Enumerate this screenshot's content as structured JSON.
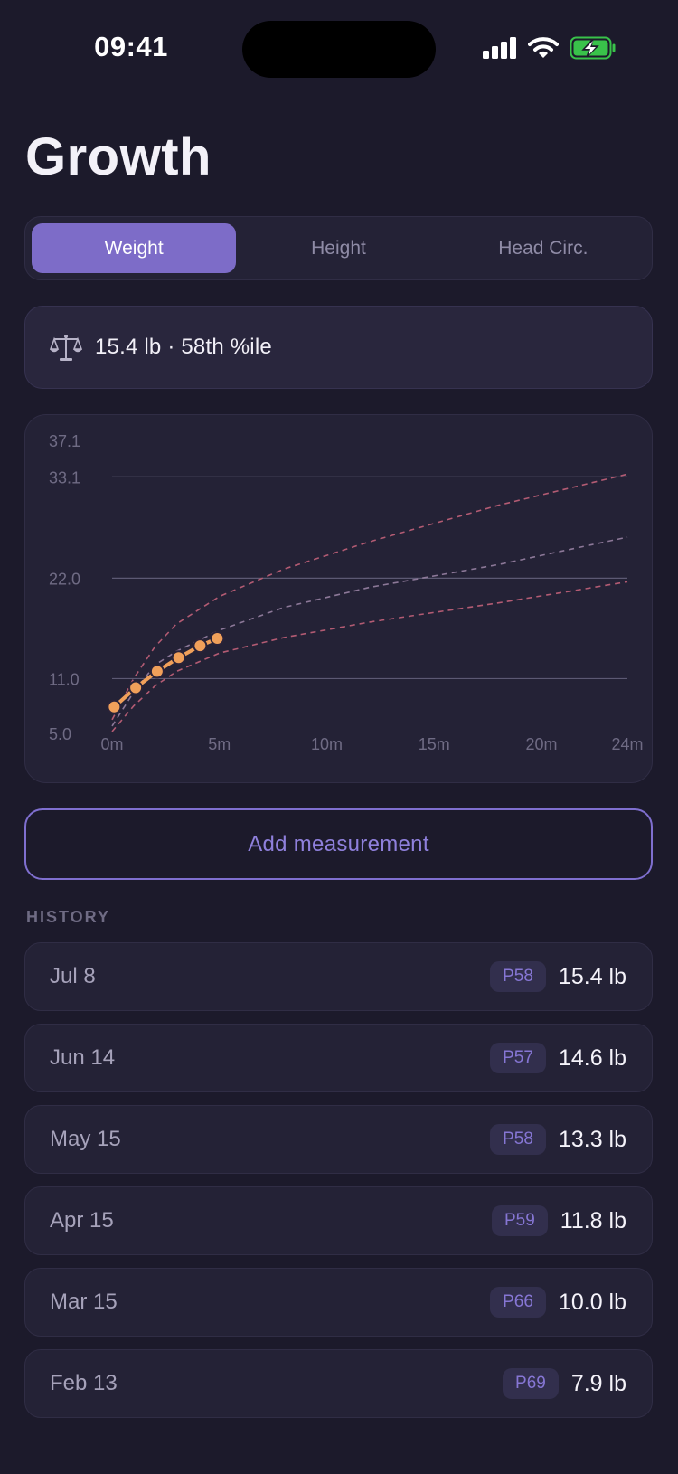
{
  "status_bar": {
    "time": "09:41"
  },
  "title": "Growth",
  "tabs": [
    {
      "label": "Weight",
      "active": true
    },
    {
      "label": "Height",
      "active": false
    },
    {
      "label": "Head Circ.",
      "active": false
    }
  ],
  "summary": {
    "icon": "scale-icon",
    "text": "15.4 lb · 58th %ile"
  },
  "chart_data": {
    "type": "line",
    "y_ticks": [
      "37.1",
      "33.1",
      "22.0",
      "11.0",
      "5.0"
    ],
    "y_tick_values": [
      37.1,
      33.1,
      22.0,
      11.0,
      5.0
    ],
    "gridlines_at": [
      33.1,
      22.0,
      11.0
    ],
    "x_ticks": [
      "0m",
      "5m",
      "10m",
      "15m",
      "20m",
      "24m"
    ],
    "x_tick_values": [
      0,
      5,
      10,
      15,
      20,
      24
    ],
    "xlim": [
      0,
      24
    ],
    "ylim": [
      5.0,
      37.1
    ],
    "measurements": {
      "x": [
        0.1,
        1.1,
        2.1,
        3.1,
        4.1,
        4.9
      ],
      "y": [
        7.9,
        10.0,
        11.8,
        13.3,
        14.6,
        15.4
      ]
    },
    "percentile_curves": [
      {
        "x": [
          0,
          1,
          2,
          3,
          5,
          8,
          12,
          18,
          24
        ],
        "y": [
          6.5,
          11,
          14.5,
          17,
          20,
          23,
          26,
          30,
          33.4
        ]
      },
      {
        "x": [
          0,
          1,
          2,
          3,
          5,
          8,
          12,
          18,
          24
        ],
        "y": [
          5.8,
          9.5,
          12.5,
          14,
          16.3,
          18.8,
          21,
          23.5,
          26.5
        ]
      },
      {
        "x": [
          0,
          1,
          2,
          3,
          5,
          8,
          12,
          18,
          24
        ],
        "y": [
          5.2,
          8,
          10.2,
          11.8,
          13.8,
          15.5,
          17.2,
          19.3,
          21.6
        ]
      }
    ],
    "colors": {
      "measurement": "#f0a05a",
      "upper_lower_curves": "#b35b73",
      "median_curve": "#8c7898",
      "gridline": "#5c5973",
      "tick_label": "#6f6b84"
    }
  },
  "add_button_label": "Add measurement",
  "history_label": "HISTORY",
  "history": [
    {
      "date": "Jul 8",
      "percentile": "P58",
      "value": "15.4 lb"
    },
    {
      "date": "Jun 14",
      "percentile": "P57",
      "value": "14.6 lb"
    },
    {
      "date": "May 15",
      "percentile": "P58",
      "value": "13.3 lb"
    },
    {
      "date": "Apr 15",
      "percentile": "P59",
      "value": "11.8 lb"
    },
    {
      "date": "Mar 15",
      "percentile": "P66",
      "value": "10.0 lb"
    },
    {
      "date": "Feb 13",
      "percentile": "P69",
      "value": "7.9 lb"
    }
  ],
  "colors": {
    "background": "#1c1a2b",
    "accent": "#7d6cc8",
    "card": "#242236"
  }
}
